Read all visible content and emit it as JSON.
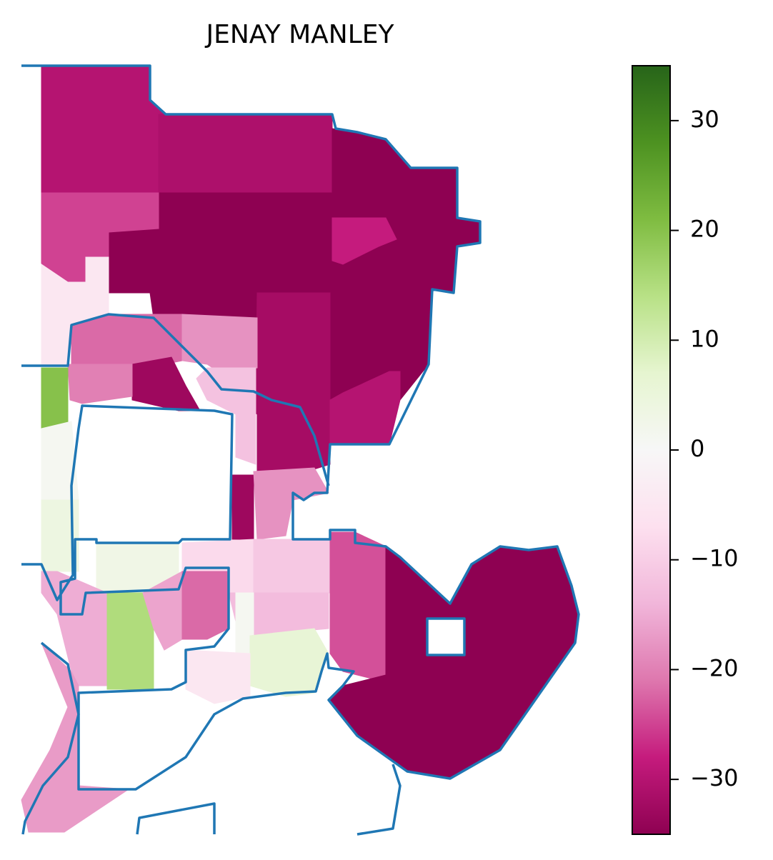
{
  "chart_data": {
    "type": "choropleth",
    "title": "JENAY MANLEY",
    "colormap": "PiYG",
    "values": [
      -30,
      -31,
      -35,
      -28,
      -25,
      -5,
      -22,
      -32,
      -18,
      -30,
      -12,
      -33,
      -20,
      20,
      1,
      4,
      -33,
      -18,
      -8,
      -11,
      -24,
      -35,
      3,
      -15,
      15,
      -16,
      -22,
      -13,
      1,
      6,
      -5,
      -17
    ],
    "ylim": [
      -35,
      35
    ],
    "yticks": [
      {
        "value": -30,
        "label": "−30"
      },
      {
        "value": -20,
        "label": "−20"
      },
      {
        "value": -10,
        "label": "−10"
      },
      0,
      10,
      20,
      30
    ]
  }
}
